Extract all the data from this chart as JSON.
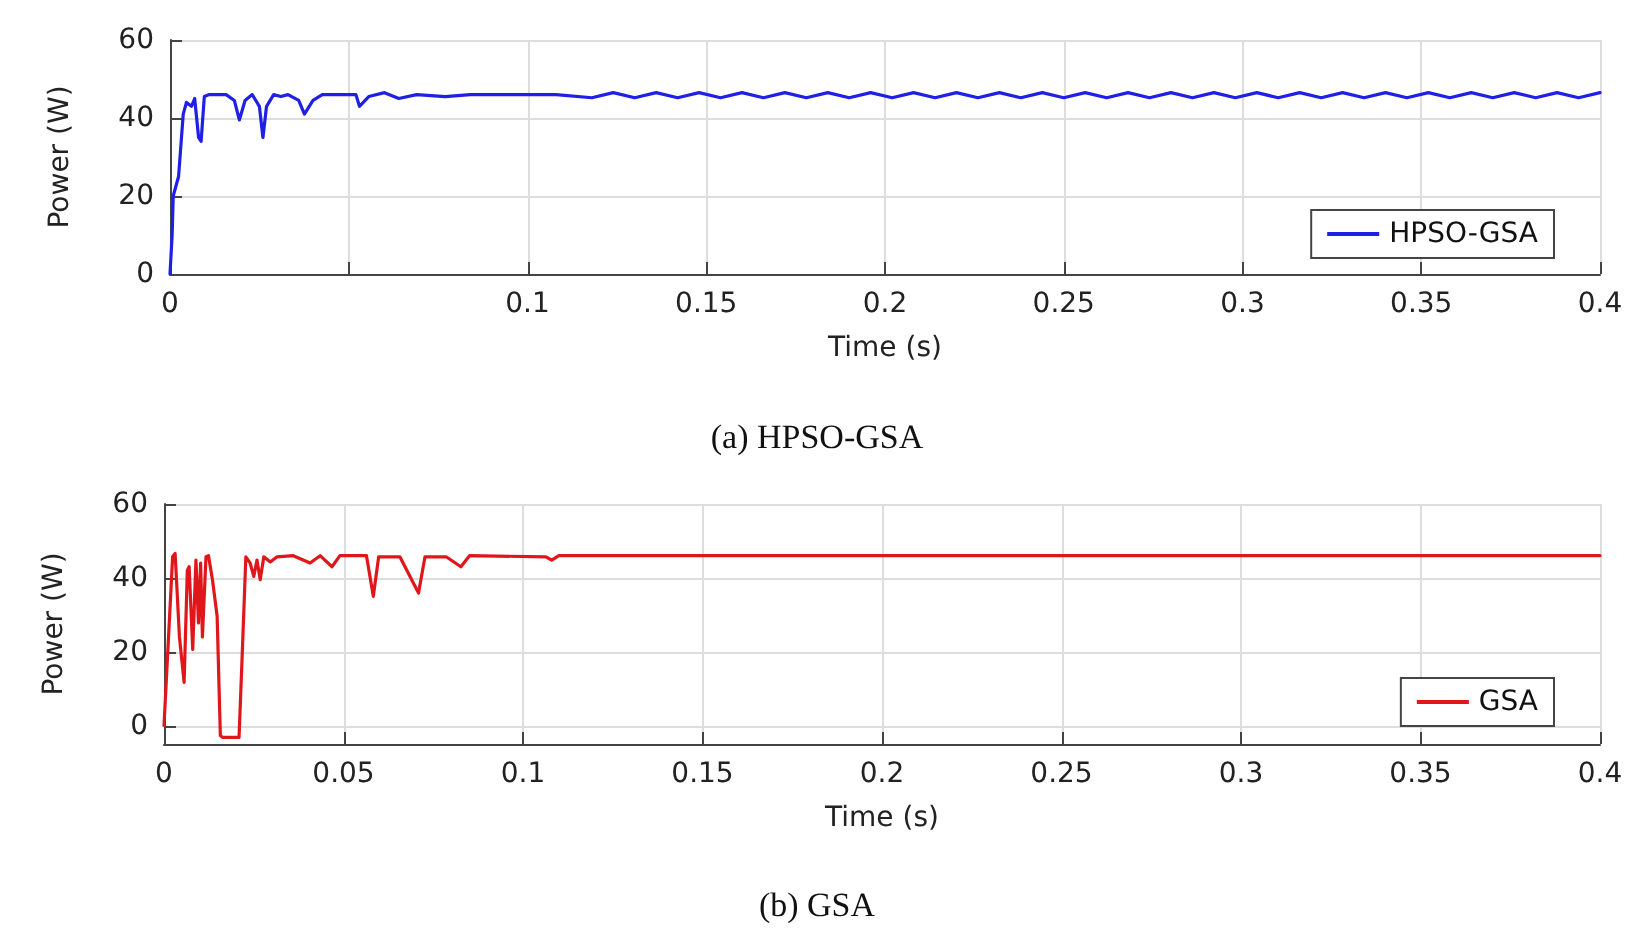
{
  "chart_data": [
    {
      "type": "line",
      "title": "(a) HPSO-GSA",
      "xlabel": "Time (s)",
      "ylabel": "Power (W)",
      "xlim": [
        0,
        0.4
      ],
      "ylim": [
        0,
        60
      ],
      "xticks": [
        0,
        {
          "value": 0.05,
          "label": null
        },
        0.1,
        0.15,
        0.2,
        0.25,
        0.3,
        0.35,
        0.4
      ],
      "yticks": [
        0,
        20,
        40,
        60
      ],
      "grid": true,
      "legend": "right",
      "marker": "none",
      "line_style": "solid",
      "series": [
        {
          "name": "HPSO-GSA",
          "color": "#1f1fe6",
          "x": [
            0,
            0.0006,
            0.0009,
            0.0024,
            0.0037,
            0.0046,
            0.006,
            0.0069,
            0.008,
            0.0087,
            0.0096,
            0.011,
            0.0157,
            0.018,
            0.0194,
            0.021,
            0.023,
            0.025,
            0.026,
            0.027,
            0.029,
            0.031,
            0.033,
            0.036,
            0.0376,
            0.04,
            0.0426,
            0.047,
            0.052,
            0.053,
            0.0556,
            0.06,
            0.064,
            0.069,
            0.077,
            0.084,
            0.097,
            0.108,
            0.118,
            0.124,
            0.13,
            0.136,
            0.142,
            0.148,
            0.154,
            0.16,
            0.166,
            0.172,
            0.178,
            0.184,
            0.19,
            0.196,
            0.202,
            0.208,
            0.214,
            0.22,
            0.226,
            0.232,
            0.238,
            0.244,
            0.25,
            0.256,
            0.262,
            0.268,
            0.274,
            0.28,
            0.286,
            0.292,
            0.298,
            0.304,
            0.31,
            0.316,
            0.322,
            0.328,
            0.334,
            0.34,
            0.346,
            0.352,
            0.358,
            0.364,
            0.37,
            0.376,
            0.382,
            0.388,
            0.394,
            0.4
          ],
          "values": [
            0,
            10,
            20,
            25,
            41,
            44,
            43,
            45,
            35,
            34,
            45.5,
            46,
            46,
            44.5,
            39.5,
            44.5,
            46,
            43,
            35,
            43,
            46,
            45.5,
            46,
            44.5,
            41,
            44.5,
            46,
            46,
            46,
            43,
            45.5,
            46.5,
            45,
            46,
            45.5,
            46,
            46,
            46,
            45.2,
            46.5,
            45.2,
            46.5,
            45.2,
            46.5,
            45.2,
            46.5,
            45.2,
            46.5,
            45.2,
            46.5,
            45.2,
            46.5,
            45.2,
            46.5,
            45.2,
            46.5,
            45.2,
            46.5,
            45.2,
            46.5,
            45.2,
            46.5,
            45.2,
            46.5,
            45.2,
            46.5,
            45.2,
            46.5,
            45.2,
            46.5,
            45.2,
            46.5,
            45.2,
            46.5,
            45.2,
            46.5,
            45.2,
            46.5,
            45.2,
            46.5,
            45.2,
            46.5,
            45.2,
            46.5,
            45.2,
            46.5
          ]
        }
      ]
    },
    {
      "type": "line",
      "title": "(b) GSA",
      "xlabel": "Time (s)",
      "ylabel": "Power (W)",
      "xlim": [
        0,
        0.4
      ],
      "ylim": [
        -5,
        60
      ],
      "xticks": [
        0,
        0.05,
        0.1,
        0.15,
        0.2,
        0.25,
        0.3,
        0.35,
        0.4
      ],
      "yticks": [
        0,
        20,
        40,
        60
      ],
      "grid": true,
      "legend": "right",
      "marker": "none",
      "line_style": "solid",
      "series": [
        {
          "name": "GSA",
          "color": "#e0161b",
          "x": [
            0,
            0.0009,
            0.0024,
            0.0031,
            0.0043,
            0.0056,
            0.0065,
            0.007,
            0.008,
            0.0089,
            0.0096,
            0.0102,
            0.0107,
            0.0117,
            0.0124,
            0.0135,
            0.0148,
            0.0157,
            0.0163,
            0.0209,
            0.0217,
            0.0228,
            0.024,
            0.025,
            0.0259,
            0.0268,
            0.0278,
            0.0296,
            0.0315,
            0.036,
            0.0407,
            0.0435,
            0.0468,
            0.049,
            0.0564,
            0.0583,
            0.0598,
            0.0657,
            0.0709,
            0.0727,
            0.0786,
            0.0827,
            0.0851,
            0.1064,
            0.108,
            0.11,
            0.4
          ],
          "values": [
            0,
            17,
            45.7,
            46.6,
            24,
            11.7,
            42,
            43,
            20.6,
            44.8,
            27.8,
            44,
            24,
            45.7,
            46,
            39.5,
            29.6,
            -2.7,
            -3.2,
            -3.2,
            17,
            45.7,
            44,
            40.4,
            44.8,
            39.5,
            45.7,
            44.3,
            45.7,
            46,
            44,
            46,
            43,
            46,
            46,
            35,
            45.7,
            45.7,
            35.9,
            45.7,
            45.7,
            43,
            46,
            45.7,
            44.8,
            46,
            46
          ]
        }
      ]
    }
  ]
}
